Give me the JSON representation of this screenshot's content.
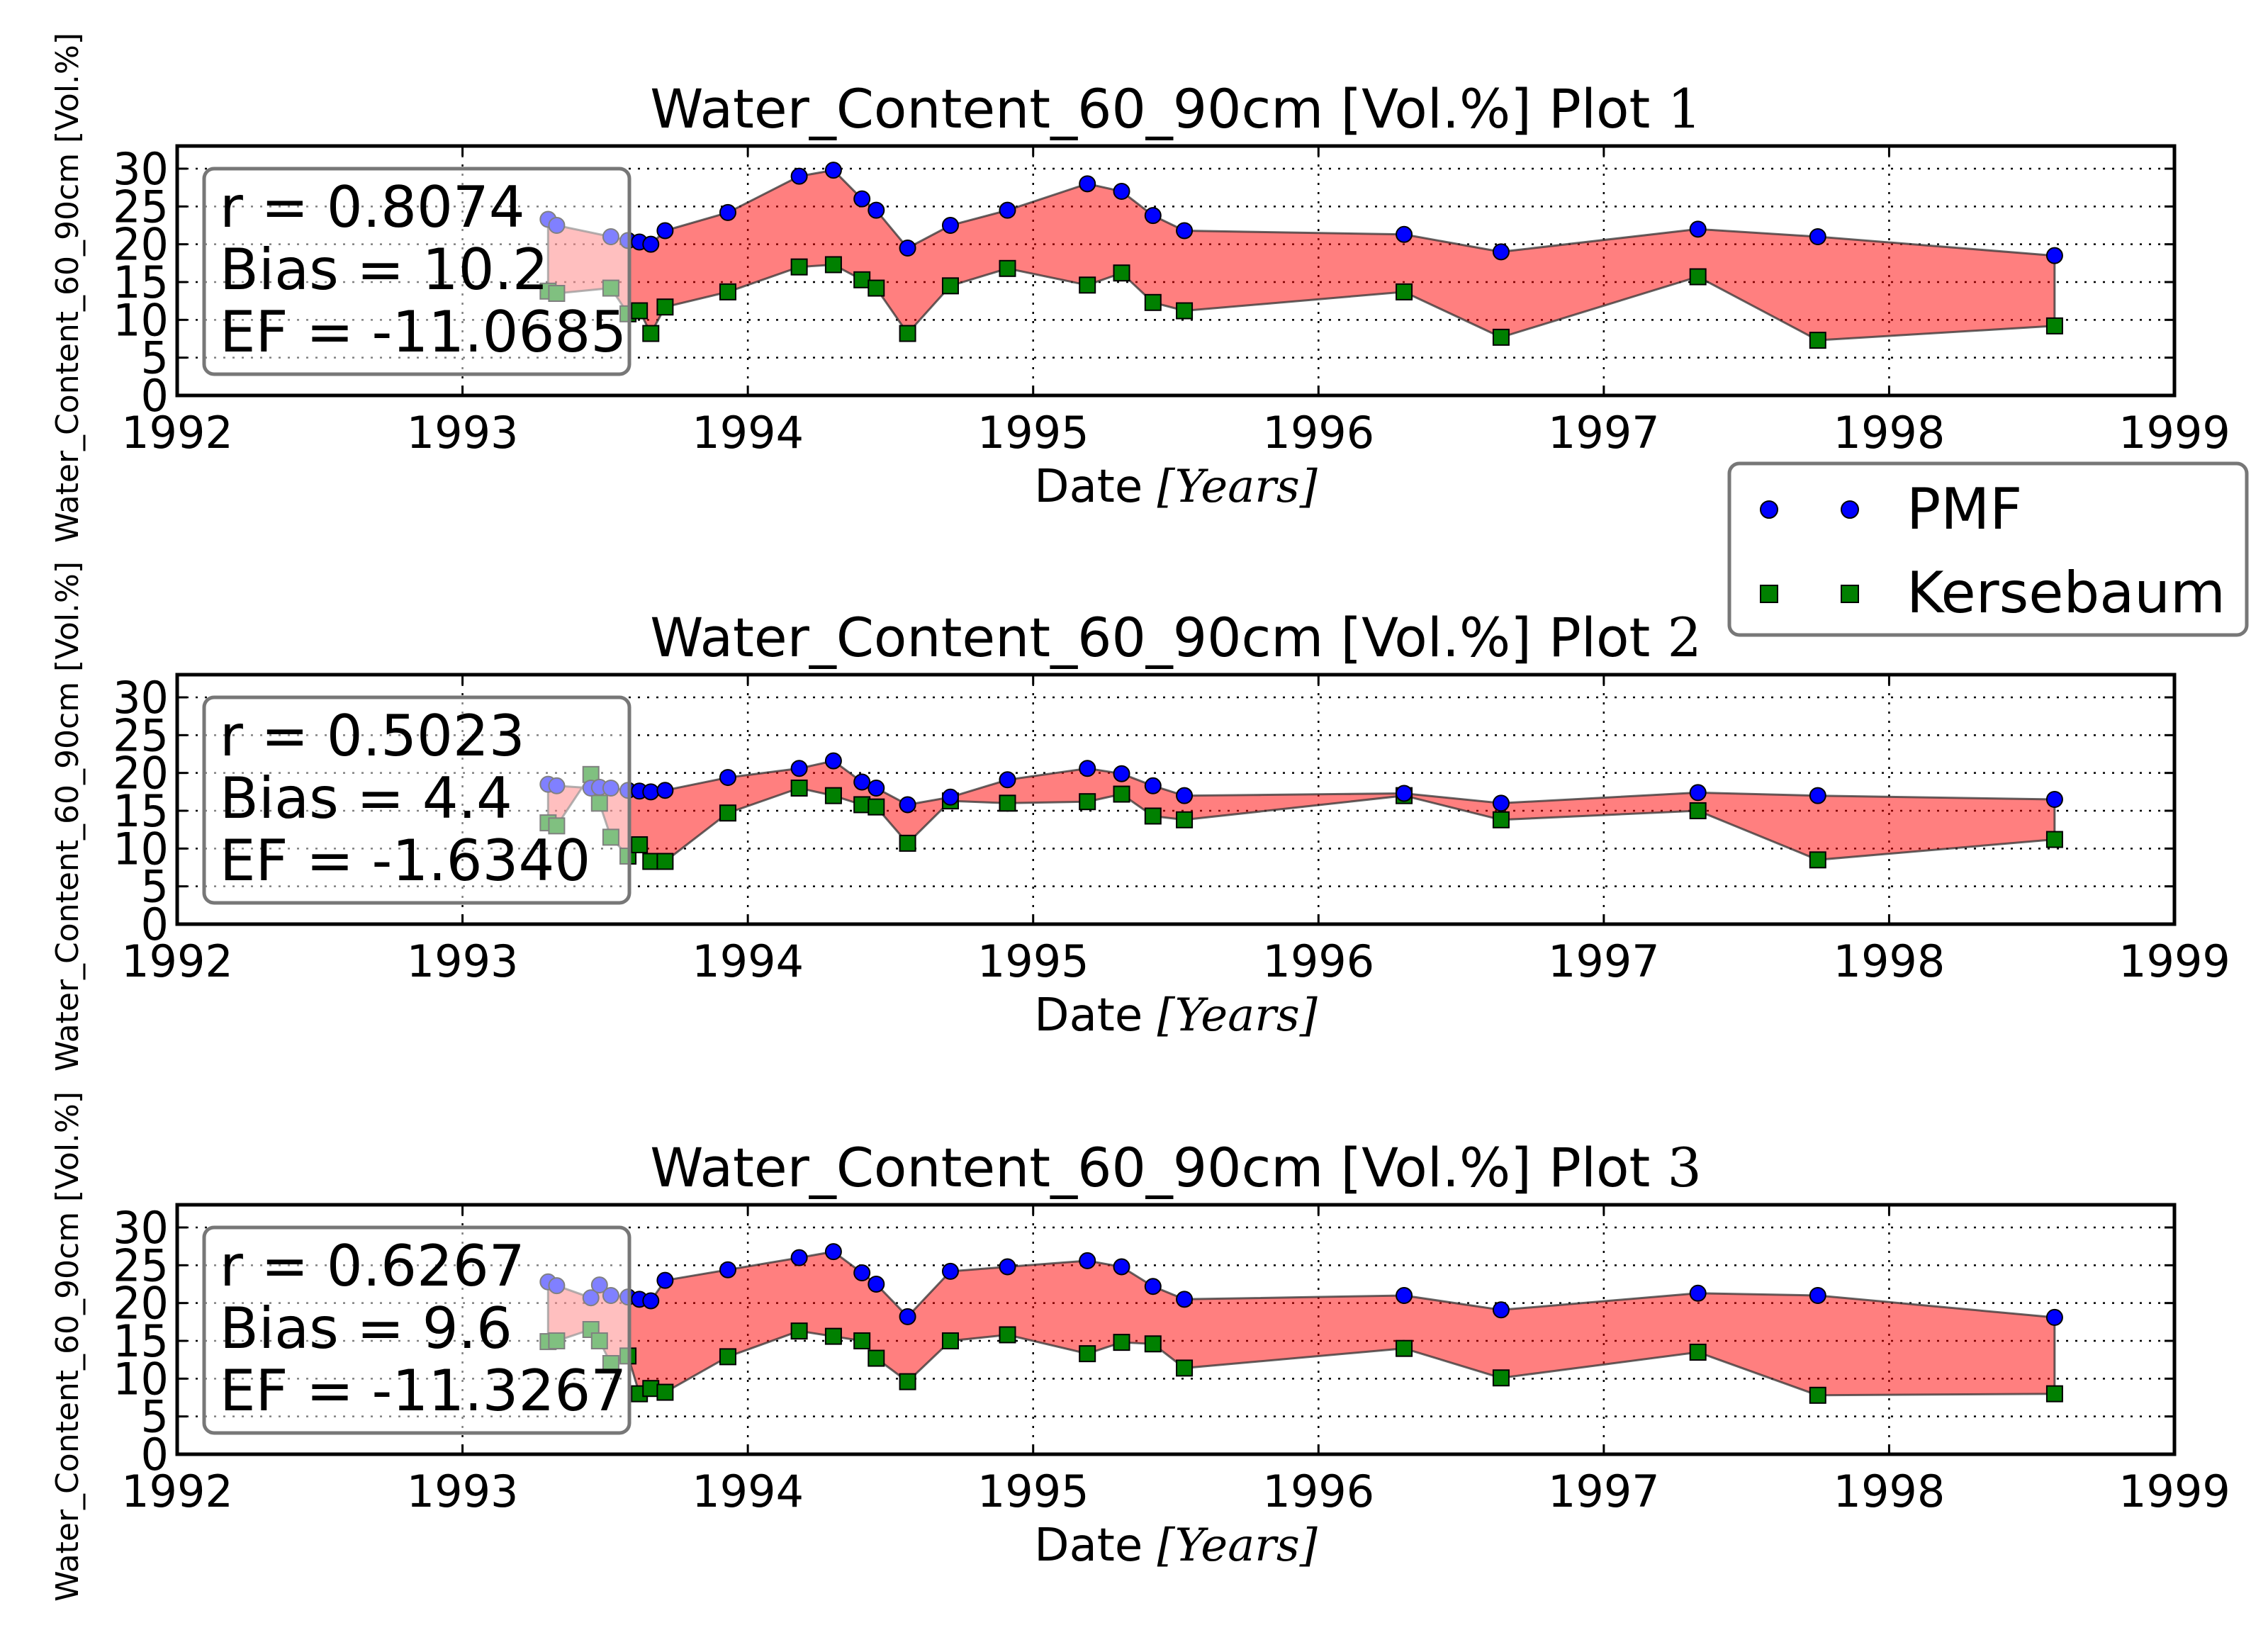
{
  "chart_data": {
    "type": "line",
    "legend": {
      "placement": "right, between plot 1 and plot 2",
      "entries": [
        {
          "name": "PMF",
          "marker": "circle",
          "color": "#0000ff"
        },
        {
          "name": "Kersebaum",
          "marker": "square",
          "color": "#008000"
        }
      ]
    },
    "fill_color": "#ff0000",
    "fill_alpha": 0.5,
    "grid": true,
    "x_ticks": [
      "1992",
      "1993",
      "1994",
      "1995",
      "1996",
      "1997",
      "1998",
      "1999"
    ],
    "y_ticks": [
      "0",
      "5",
      "10",
      "15",
      "20",
      "25",
      "30"
    ],
    "panels": [
      {
        "title_prefix": "Water_Content_60_90cm [Vol.%] Plot ",
        "title_num": "1",
        "xlabel_prefix": "Date ",
        "xlabel_math": "[Years]",
        "ylabel": "Water_Content_60_90cm [Vol.%]",
        "xlim": [
          1992,
          1999
        ],
        "ylim": [
          0,
          33
        ],
        "stats": {
          "r": "r = 0.8074",
          "bias": "Bias = 10.2",
          "ef": "EF = -11.0685"
        },
        "x": [
          1993.3,
          1993.33,
          1993.52,
          1993.58,
          1993.62,
          1993.66,
          1993.71,
          1993.93,
          1994.18,
          1994.3,
          1994.4,
          1994.45,
          1994.56,
          1994.71,
          1994.91,
          1995.19,
          1995.31,
          1995.42,
          1995.53,
          1996.3,
          1996.64,
          1997.33,
          1997.75,
          1998.58
        ],
        "series": [
          {
            "name": "PMF",
            "values": [
              23.3,
              22.5,
              21.0,
              20.5,
              20.3,
              20.0,
              21.8,
              24.2,
              29.0,
              29.8,
              26.0,
              24.5,
              19.5,
              22.5,
              24.5,
              28.0,
              27.0,
              23.8,
              21.8,
              21.3,
              19.0,
              22.0,
              21.0,
              18.5
            ]
          },
          {
            "name": "Kersebaum",
            "values": [
              13.8,
              13.5,
              14.2,
              10.8,
              11.2,
              8.2,
              11.7,
              13.7,
              17.0,
              17.3,
              15.3,
              14.2,
              8.2,
              14.5,
              16.8,
              14.6,
              16.2,
              12.3,
              11.2,
              13.7,
              7.7,
              15.7,
              7.3,
              9.2
            ]
          }
        ]
      },
      {
        "title_prefix": "Water_Content_60_90cm [Vol.%] Plot ",
        "title_num": "2",
        "xlabel_prefix": "Date ",
        "xlabel_math": "[Years]",
        "ylabel": "Water_Content_60_90cm [Vol.%]",
        "xlim": [
          1992,
          1999
        ],
        "ylim": [
          0,
          33
        ],
        "stats": {
          "r": "r = 0.5023",
          "bias": "Bias = 4.4",
          "ef": "EF = -1.6340"
        },
        "x": [
          1993.3,
          1993.33,
          1993.45,
          1993.48,
          1993.52,
          1993.58,
          1993.62,
          1993.66,
          1993.71,
          1993.93,
          1994.18,
          1994.3,
          1994.4,
          1994.45,
          1994.56,
          1994.71,
          1994.91,
          1995.19,
          1995.31,
          1995.42,
          1995.53,
          1996.3,
          1996.64,
          1997.33,
          1997.75,
          1998.58
        ],
        "series": [
          {
            "name": "PMF",
            "values": [
              18.5,
              18.3,
              18.0,
              18.1,
              18.0,
              17.7,
              17.6,
              17.5,
              17.7,
              19.4,
              20.6,
              21.6,
              18.8,
              18.0,
              15.8,
              16.8,
              19.1,
              20.6,
              19.9,
              18.3,
              17.0,
              17.3,
              16.0,
              17.4,
              17.0,
              16.5
            ]
          },
          {
            "name": "Kersebaum",
            "values": [
              13.4,
              13.0,
              19.8,
              16.0,
              11.5,
              9.0,
              10.5,
              8.3,
              8.3,
              14.7,
              18.0,
              17.0,
              15.8,
              15.5,
              10.7,
              16.3,
              16.0,
              16.2,
              17.2,
              14.3,
              13.8,
              17.0,
              13.8,
              15.0,
              8.5,
              11.2
            ]
          }
        ]
      },
      {
        "title_prefix": "Water_Content_60_90cm [Vol.%] Plot ",
        "title_num": "3",
        "xlabel_prefix": "Date ",
        "xlabel_math": "[Years]",
        "ylabel": "Water_Content_60_90cm [Vol.%]",
        "xlim": [
          1992,
          1999
        ],
        "ylim": [
          0,
          33
        ],
        "stats": {
          "r": "r = 0.6267",
          "bias": "Bias = 9.6",
          "ef": "EF = -11.3267"
        },
        "x": [
          1993.3,
          1993.33,
          1993.45,
          1993.48,
          1993.52,
          1993.58,
          1993.62,
          1993.66,
          1993.71,
          1993.93,
          1994.18,
          1994.3,
          1994.4,
          1994.45,
          1994.56,
          1994.71,
          1994.91,
          1995.19,
          1995.31,
          1995.42,
          1995.53,
          1996.3,
          1996.64,
          1997.33,
          1997.75,
          1998.58
        ],
        "series": [
          {
            "name": "PMF",
            "values": [
              22.8,
              22.3,
              20.7,
              22.4,
              21.0,
              20.8,
              20.5,
              20.3,
              23.0,
              24.4,
              26.0,
              26.8,
              24.0,
              22.5,
              18.2,
              24.2,
              24.8,
              25.6,
              24.8,
              22.2,
              20.5,
              21.0,
              19.1,
              21.3,
              21.0,
              18.1
            ]
          },
          {
            "name": "Kersebaum",
            "values": [
              14.9,
              15.0,
              16.5,
              15.0,
              12.0,
              13.0,
              8.0,
              8.7,
              8.2,
              12.9,
              16.3,
              15.6,
              15.0,
              12.7,
              9.6,
              15.0,
              15.8,
              13.3,
              14.8,
              14.6,
              11.4,
              14.0,
              10.1,
              13.5,
              7.8,
              8.0
            ]
          }
        ]
      }
    ]
  }
}
